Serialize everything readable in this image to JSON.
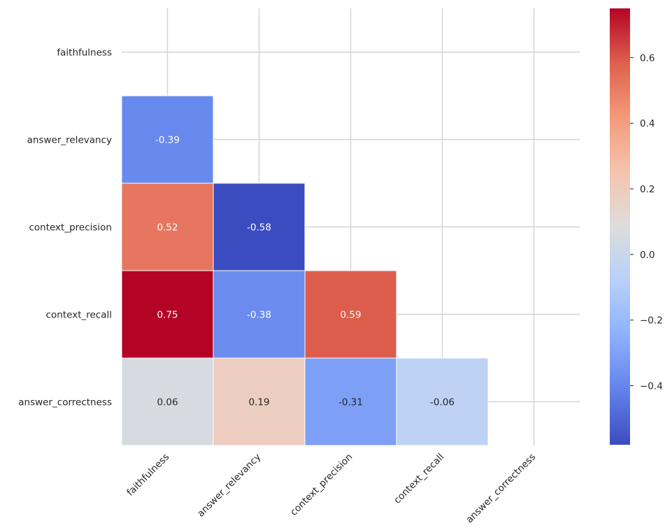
{
  "chart_data": {
    "type": "heatmap",
    "title": "",
    "xlabel": "",
    "ylabel": "",
    "colormap": "coolwarm",
    "vmin": -0.58,
    "vmax": 0.75,
    "mask": "upper-triangle-including-diagonal",
    "grid": true,
    "x_tick_labels": [
      "faithfulness",
      "answer_relevancy",
      "context_precision",
      "context_recall",
      "answer_correctness"
    ],
    "y_tick_labels": [
      "faithfulness",
      "answer_relevancy",
      "context_precision",
      "context_recall",
      "answer_correctness"
    ],
    "cells": [
      {
        "row": 1,
        "col": 0,
        "value": -0.39,
        "label": "-0.39"
      },
      {
        "row": 2,
        "col": 0,
        "value": 0.52,
        "label": "0.52"
      },
      {
        "row": 2,
        "col": 1,
        "value": -0.58,
        "label": "-0.58"
      },
      {
        "row": 3,
        "col": 0,
        "value": 0.75,
        "label": "0.75"
      },
      {
        "row": 3,
        "col": 1,
        "value": -0.38,
        "label": "-0.38"
      },
      {
        "row": 3,
        "col": 2,
        "value": 0.59,
        "label": "0.59"
      },
      {
        "row": 4,
        "col": 0,
        "value": 0.06,
        "label": "0.06"
      },
      {
        "row": 4,
        "col": 1,
        "value": 0.19,
        "label": "0.19"
      },
      {
        "row": 4,
        "col": 2,
        "value": -0.31,
        "label": "-0.31"
      },
      {
        "row": 4,
        "col": 3,
        "value": -0.06,
        "label": "-0.06"
      }
    ],
    "colorbar": {
      "ticks": [
        {
          "value": 0.6,
          "label": "0.6"
        },
        {
          "value": 0.4,
          "label": "0.4"
        },
        {
          "value": 0.2,
          "label": "0.2"
        },
        {
          "value": 0.0,
          "label": "0.0"
        },
        {
          "value": -0.2,
          "label": "−0.2"
        },
        {
          "value": -0.4,
          "label": "−0.4"
        }
      ]
    }
  },
  "colors": {
    "gridline": "#d3d3d3",
    "cell_border": "#ffffff",
    "tick_text": "#262626",
    "background": "#ffffff"
  }
}
